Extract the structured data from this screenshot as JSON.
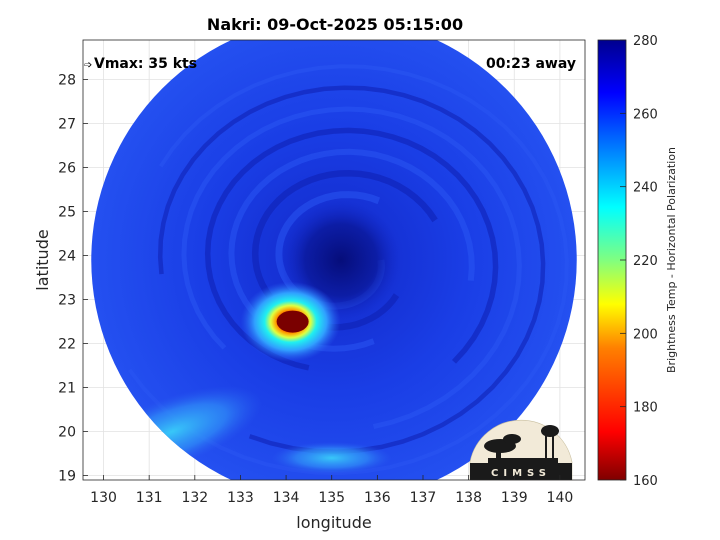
{
  "chart_data": {
    "type": "heatmap",
    "title": "Nakri: 09-Oct-2025 05:15:00",
    "xlabel": "longitude",
    "ylabel": "latitude",
    "xlim": [
      129.55,
      140.55
    ],
    "ylim": [
      18.9,
      28.9
    ],
    "x_ticks": [
      130,
      131,
      132,
      133,
      134,
      135,
      136,
      137,
      138,
      139,
      140
    ],
    "y_ticks": [
      19,
      20,
      21,
      22,
      23,
      24,
      25,
      26,
      27,
      28
    ],
    "grid": true,
    "swath_center": [
      135.05,
      23.9
    ],
    "swath_radius_deg": 5.4,
    "storm_center": [
      135.2,
      23.9
    ],
    "convective_core": [
      134.1,
      22.5
    ],
    "background_value": 262,
    "features": [
      {
        "kind": "eye",
        "lon": 135.2,
        "lat": 23.9,
        "tb": 272
      },
      {
        "kind": "deep-convection",
        "lon": 134.1,
        "lat": 22.5,
        "tb": 185
      },
      {
        "kind": "cold-cloud-band",
        "lon": 131.5,
        "lat": 20.0,
        "tb": 238
      }
    ],
    "colorbar": {
      "label": "Brightness Temp - Horizontal Polarization",
      "min": 160,
      "max": 280,
      "ticks": [
        160,
        180,
        200,
        220,
        240,
        260,
        280
      ],
      "colormap": [
        "#7f0000",
        "#ff0000",
        "#ff8000",
        "#ffff00",
        "#80ff80",
        "#00ffff",
        "#0080ff",
        "#0000ff",
        "#00008f"
      ]
    }
  },
  "annotations": {
    "vmax": "Vmax: 35 kts",
    "away": "00:23 away"
  },
  "logo": {
    "text": "CIMSS"
  }
}
